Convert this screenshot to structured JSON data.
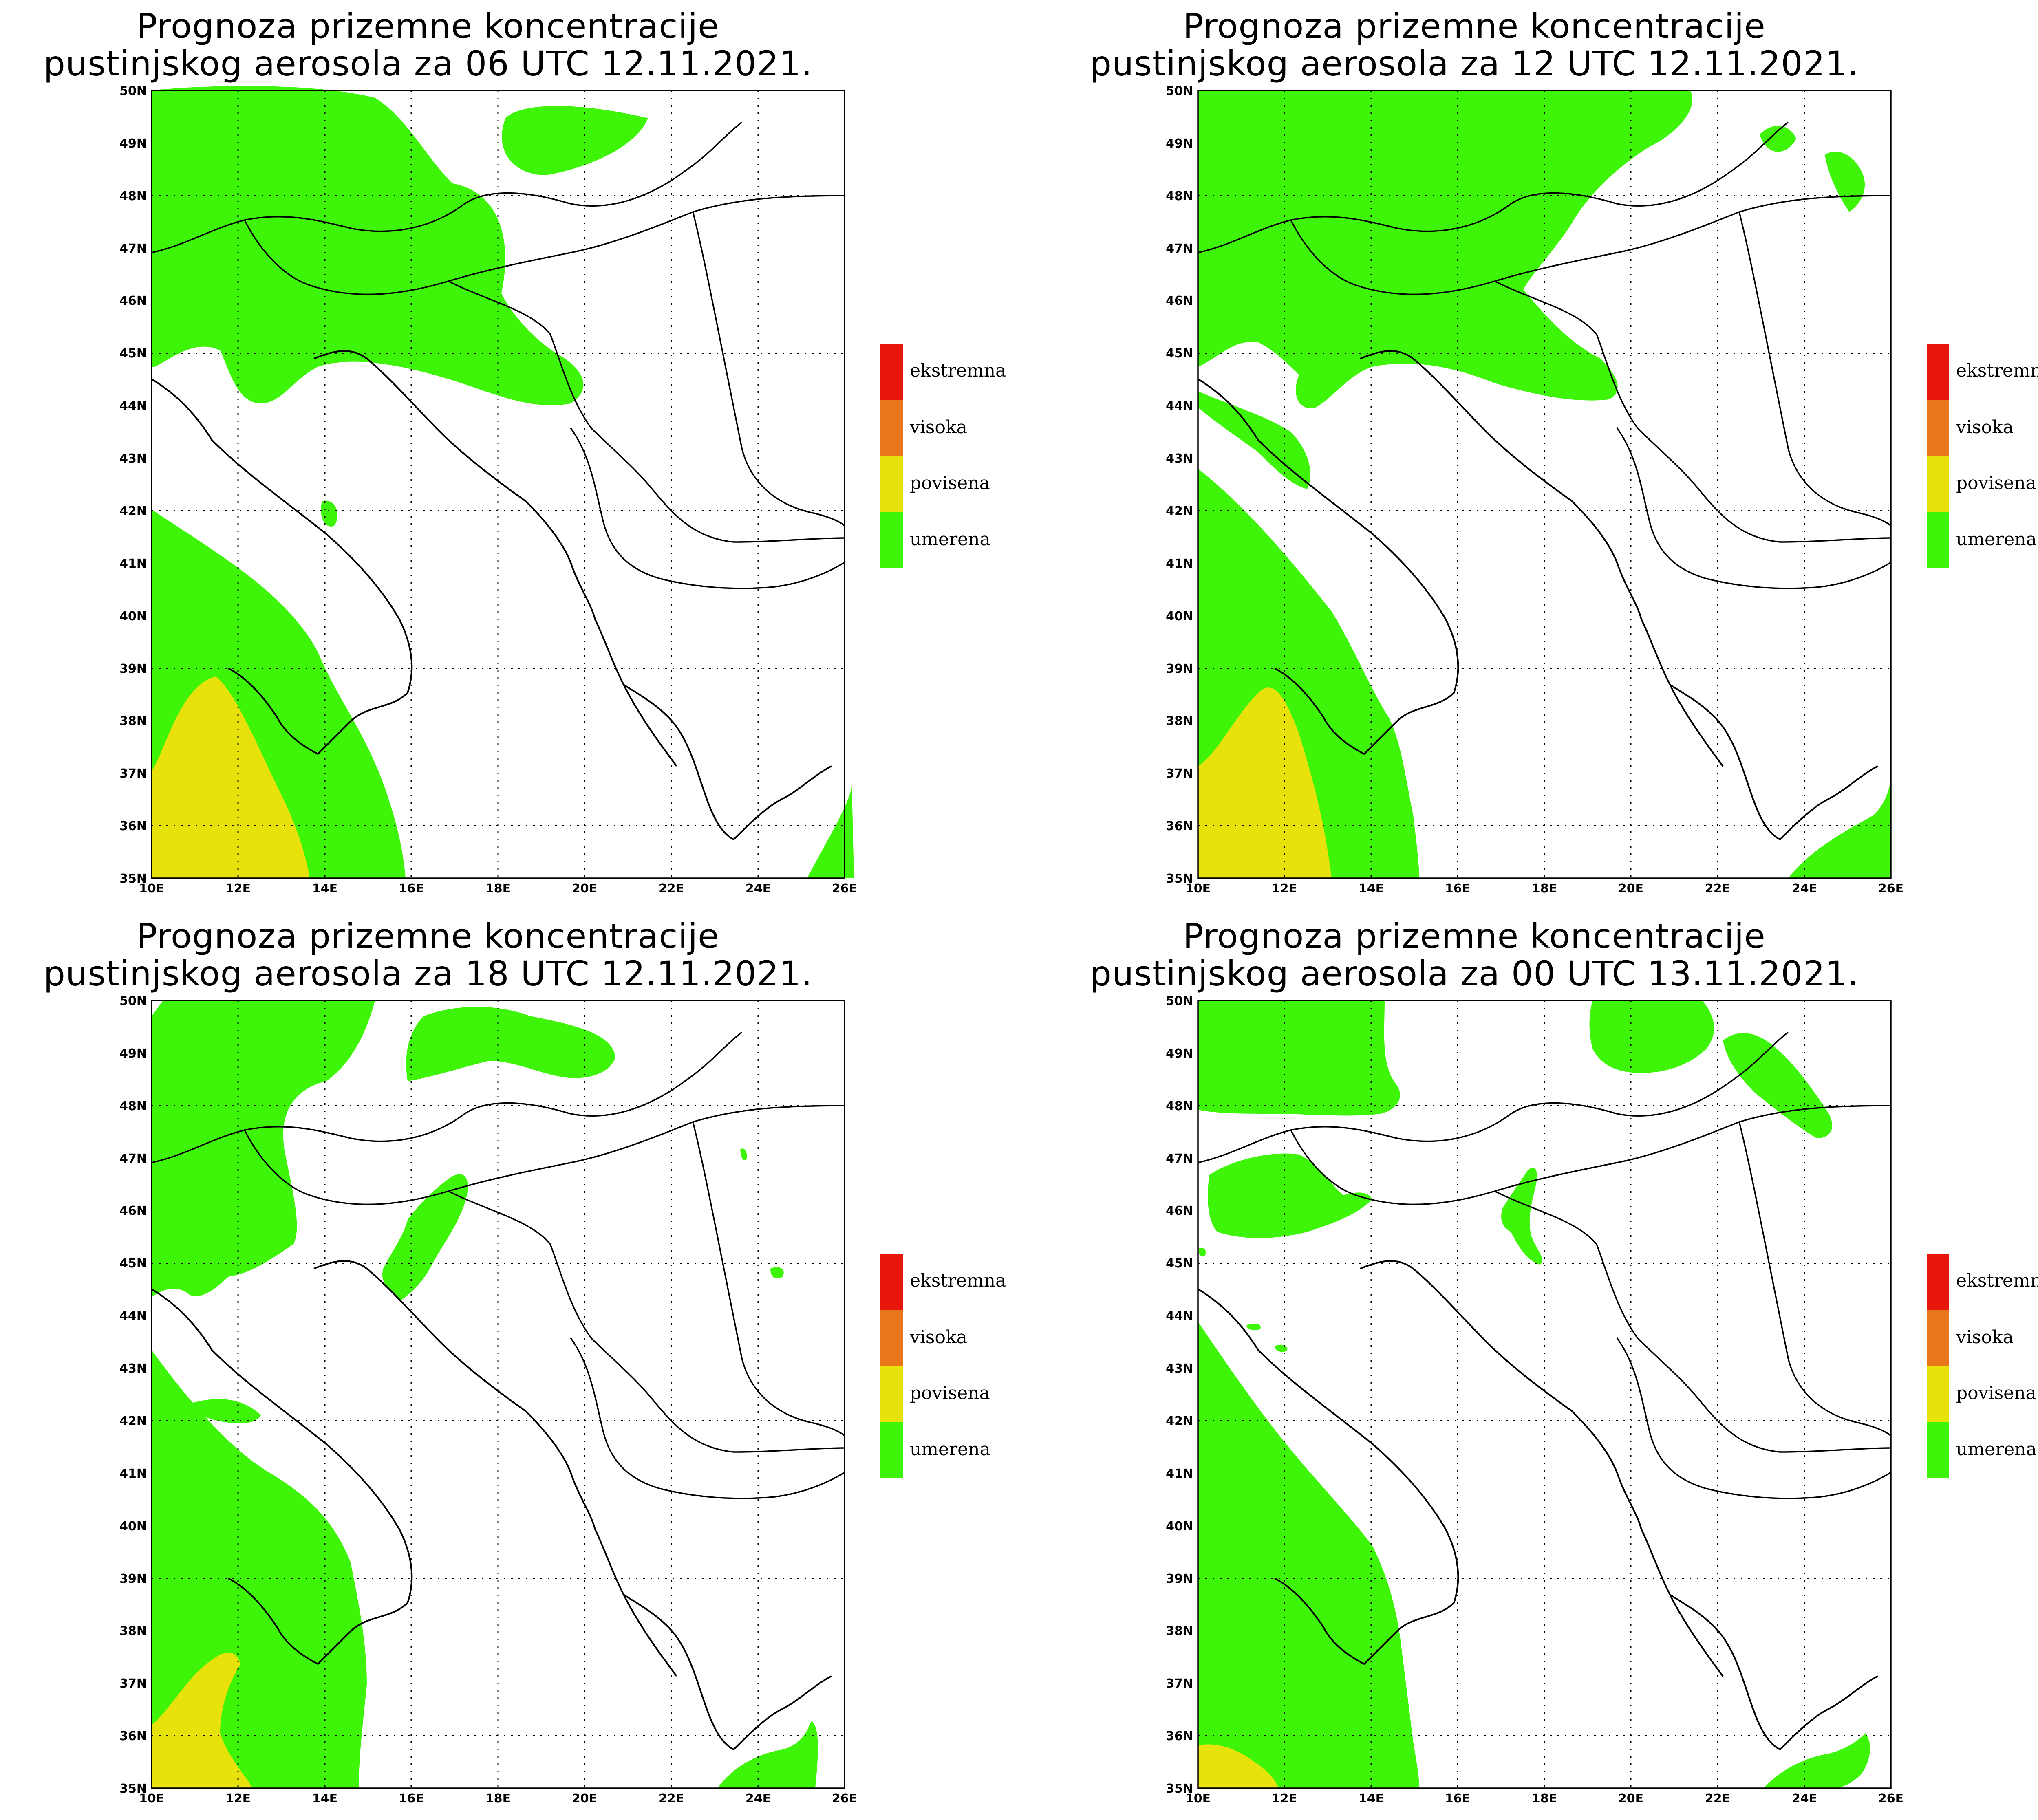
{
  "panels": [
    {
      "title_line1": "Prognoza prizemne koncentracije",
      "title_line2": "pustinjskog aerosola za 06 UTC 12.11.2021."
    },
    {
      "title_line1": "Prognoza prizemne koncentracije",
      "title_line2": "pustinjskog aerosola za 12 UTC 12.11.2021."
    },
    {
      "title_line1": "Prognoza prizemne koncentracije",
      "title_line2": "pustinjskog aerosola za 18 UTC 12.11.2021."
    },
    {
      "title_line1": "Prognoza prizemne koncentracije",
      "title_line2": "pustinjskog aerosola za 00 UTC 13.11.2021."
    }
  ],
  "lat_labels": [
    "50N",
    "49N",
    "48N",
    "47N",
    "46N",
    "45N",
    "44N",
    "43N",
    "42N",
    "41N",
    "40N",
    "39N",
    "38N",
    "37N",
    "36N",
    "35N"
  ],
  "lon_labels": [
    "10E",
    "12E",
    "14E",
    "16E",
    "18E",
    "20E",
    "22E",
    "24E",
    "26E"
  ],
  "legend": [
    {
      "label": "ekstremna",
      "color": "#e8170c"
    },
    {
      "label": "visoka",
      "color": "#e8761a"
    },
    {
      "label": "povisena",
      "color": "#e7e20b"
    },
    {
      "label": "umerena",
      "color": "#3ef50a"
    }
  ],
  "colors": {
    "umerena": "#3ef50a",
    "povisena": "#e7e20b"
  }
}
